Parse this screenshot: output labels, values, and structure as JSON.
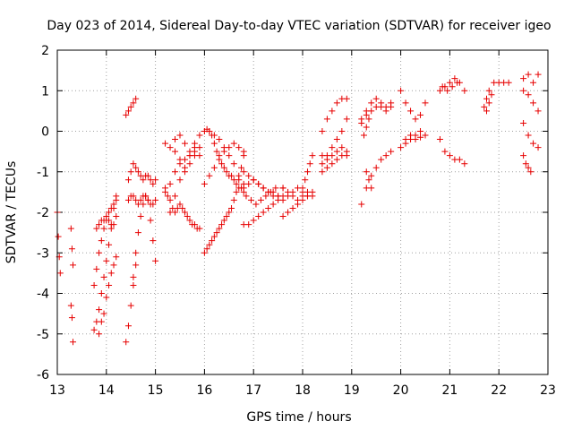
{
  "chart_data": {
    "type": "scatter",
    "title": "Day 023 of 2014, Sidereal Day-to-day VTEC variation (SDTVAR) for receiver igeo",
    "xlabel": "GPS time / hours",
    "ylabel": "SDTVAR / TECUs",
    "xlim": [
      13,
      23
    ],
    "ylim": [
      -6,
      2
    ],
    "xticks": [
      "13",
      "14",
      "15",
      "16",
      "17",
      "18",
      "19",
      "20",
      "21",
      "22",
      "23"
    ],
    "yticks": [
      "-6",
      "-5",
      "-4",
      "-3",
      "-2",
      "-1",
      "0",
      "1",
      "2"
    ],
    "grid": true,
    "marker": "+",
    "color": "#e60000",
    "segments": [
      {
        "x": [
          13.0,
          13.02,
          13.04,
          13.06
        ],
        "y": [
          -2.0,
          -2.6,
          -3.1,
          -3.5
        ]
      },
      {
        "x": [
          13.28,
          13.3,
          13.32
        ],
        "y": [
          -2.4,
          -2.9,
          -3.3
        ]
      },
      {
        "x": [
          13.28,
          13.3,
          13.32
        ],
        "y": [
          -4.3,
          -4.6,
          -5.2
        ]
      },
      {
        "x": [
          13.75,
          13.8,
          13.85,
          13.9,
          13.95,
          14.0,
          14.05,
          14.1,
          14.15,
          14.2
        ],
        "y": [
          -4.9,
          -4.7,
          -4.4,
          -4.0,
          -3.6,
          -3.2,
          -2.8,
          -2.3,
          -1.9,
          -1.6
        ]
      },
      {
        "x": [
          13.75,
          13.8,
          13.85,
          13.9,
          13.95,
          14.0,
          14.05,
          14.1,
          14.15,
          14.2
        ],
        "y": [
          -3.8,
          -3.4,
          -3.0,
          -2.7,
          -2.4,
          -2.2,
          -2.0,
          -1.9,
          -1.8,
          -1.7
        ]
      },
      {
        "x": [
          13.8,
          13.85,
          13.9,
          13.95,
          14.0,
          14.05,
          14.1,
          14.15,
          14.2
        ],
        "y": [
          -2.4,
          -2.3,
          -2.2,
          -2.2,
          -2.1,
          -2.2,
          -2.4,
          -2.3,
          -2.1
        ]
      },
      {
        "x": [
          13.85,
          13.9,
          13.95,
          14.0,
          14.05,
          14.1,
          14.15,
          14.2
        ],
        "y": [
          -5.0,
          -4.7,
          -4.5,
          -4.1,
          -3.8,
          -3.5,
          -3.3,
          -3.1
        ]
      },
      {
        "x": [
          14.4,
          14.45,
          14.5,
          14.55,
          14.6
        ],
        "y": [
          -5.2,
          -4.8,
          -4.3,
          -3.8,
          -3.3
        ]
      },
      {
        "x": [
          14.55,
          14.6,
          14.65,
          14.7,
          14.75,
          14.8,
          14.85,
          14.9,
          14.95,
          15.0
        ],
        "y": [
          -3.6,
          -3.0,
          -2.5,
          -2.1,
          -1.8,
          -1.6,
          -1.7,
          -2.2,
          -2.7,
          -3.2
        ]
      },
      {
        "x": [
          14.45,
          14.5,
          14.55,
          14.6,
          14.65,
          14.7,
          14.75,
          14.8,
          14.85,
          14.9,
          14.95,
          15.0
        ],
        "y": [
          -1.7,
          -1.6,
          -1.6,
          -1.7,
          -1.8,
          -1.7,
          -1.6,
          -1.6,
          -1.7,
          -1.8,
          -1.8,
          -1.7
        ]
      },
      {
        "x": [
          14.45,
          14.5,
          14.55,
          14.6,
          14.65,
          14.7,
          14.75,
          14.8,
          14.85,
          14.9,
          14.95,
          15.0
        ],
        "y": [
          -1.2,
          -1.0,
          -0.8,
          -0.9,
          -1.0,
          -1.1,
          -1.2,
          -1.1,
          -1.1,
          -1.2,
          -1.3,
          -1.2
        ]
      },
      {
        "x": [
          14.4,
          14.45,
          14.5,
          14.55,
          14.6
        ],
        "y": [
          0.4,
          0.5,
          0.6,
          0.7,
          0.8
        ]
      },
      {
        "x": [
          15.2,
          15.3,
          15.4,
          15.5,
          15.6,
          15.7,
          15.8,
          15.9
        ],
        "y": [
          -1.5,
          -1.3,
          -1.0,
          -0.8,
          -0.7,
          -0.6,
          -0.5,
          -0.4
        ]
      },
      {
        "x": [
          15.2,
          15.25,
          15.3,
          15.35,
          15.4,
          15.45,
          15.5,
          15.55,
          15.6,
          15.65,
          15.7,
          15.75,
          15.8,
          15.85,
          15.9
        ],
        "y": [
          -1.4,
          -1.6,
          -1.7,
          -1.9,
          -2.0,
          -1.9,
          -1.8,
          -1.9,
          -2.0,
          -2.1,
          -2.2,
          -2.3,
          -2.3,
          -2.4,
          -2.4
        ]
      },
      {
        "x": [
          15.2,
          15.3,
          15.4,
          15.5,
          15.6,
          15.7,
          15.8,
          15.9
        ],
        "y": [
          -0.3,
          -0.4,
          -0.2,
          -0.1,
          -0.3,
          -0.5,
          -0.4,
          -0.6
        ]
      },
      {
        "x": [
          15.3,
          15.4,
          15.5,
          15.6,
          15.7,
          15.8,
          15.9
        ],
        "y": [
          -2.0,
          -1.6,
          -1.2,
          -0.9,
          -0.6,
          -0.3,
          -0.1
        ]
      },
      {
        "x": [
          15.4,
          15.5,
          15.6,
          15.7,
          15.8
        ],
        "y": [
          -0.5,
          -0.7,
          -1.0,
          -0.8,
          -0.6
        ]
      },
      {
        "x": [
          16.0,
          16.05,
          16.1,
          16.15,
          16.2,
          16.25,
          16.3,
          16.35,
          16.4,
          16.45,
          16.5,
          16.55,
          16.6,
          16.65,
          16.7,
          16.75,
          16.8
        ],
        "y": [
          -3.0,
          -2.9,
          -2.8,
          -2.7,
          -2.6,
          -2.5,
          -2.4,
          -2.3,
          -2.2,
          -2.1,
          -2.0,
          -1.9,
          -1.7,
          -1.5,
          -1.2,
          -0.9,
          -0.5
        ]
      },
      {
        "x": [
          16.0,
          16.05,
          16.1,
          16.15,
          16.2,
          16.25,
          16.3,
          16.35,
          16.4,
          16.45,
          16.5,
          16.55,
          16.6,
          16.65,
          16.7,
          16.75,
          16.8
        ],
        "y": [
          0.0,
          0.05,
          0.0,
          -0.1,
          -0.3,
          -0.5,
          -0.6,
          -0.8,
          -0.9,
          -1.0,
          -1.1,
          -1.1,
          -1.2,
          -1.3,
          -1.4,
          -1.4,
          -1.5
        ]
      },
      {
        "x": [
          16.0,
          16.1,
          16.2,
          16.3,
          16.4,
          16.5,
          16.6,
          16.7,
          16.8
        ],
        "y": [
          -1.3,
          -1.1,
          -0.9,
          -0.7,
          -0.5,
          -0.4,
          -0.3,
          -0.4,
          -0.6
        ]
      },
      {
        "x": [
          16.1,
          16.2,
          16.3,
          16.4,
          16.5,
          16.6,
          16.7,
          16.8
        ],
        "y": [
          0.0,
          -0.1,
          -0.2,
          -0.4,
          -0.6,
          -0.8,
          -1.1,
          -1.3
        ]
      },
      {
        "x": [
          16.8,
          16.9,
          17.0,
          17.1,
          17.2,
          17.3,
          17.4,
          17.5,
          17.6
        ],
        "y": [
          -2.3,
          -2.3,
          -2.2,
          -2.1,
          -2.0,
          -1.9,
          -1.8,
          -1.6,
          -1.4
        ]
      },
      {
        "x": [
          16.8,
          16.9,
          17.0,
          17.1,
          17.2,
          17.3,
          17.4,
          17.5,
          17.6
        ],
        "y": [
          -1.0,
          -1.1,
          -1.2,
          -1.3,
          -1.4,
          -1.5,
          -1.5,
          -1.6,
          -1.6
        ]
      },
      {
        "x": [
          16.8,
          16.9,
          17.0,
          17.1,
          17.2,
          17.3,
          17.4,
          17.5
        ],
        "y": [
          -1.4,
          -1.3,
          -1.2,
          -1.3,
          -1.4,
          -1.5,
          -1.6,
          -1.7
        ]
      },
      {
        "x": [
          16.85,
          16.95,
          17.05,
          17.15,
          17.25,
          17.35,
          17.45
        ],
        "y": [
          -1.6,
          -1.7,
          -1.8,
          -1.7,
          -1.6,
          -1.5,
          -1.4
        ]
      },
      {
        "x": [
          17.6,
          17.7,
          17.8,
          17.9,
          18.0,
          18.1
        ],
        "y": [
          -2.1,
          -2.0,
          -1.9,
          -1.8,
          -1.7,
          -1.6
        ]
      },
      {
        "x": [
          17.6,
          17.7,
          17.8,
          17.9,
          18.0,
          18.1,
          18.2
        ],
        "y": [
          -1.4,
          -1.5,
          -1.6,
          -1.7,
          -1.6,
          -1.5,
          -1.6
        ]
      },
      {
        "x": [
          17.6,
          17.7,
          17.8,
          17.9,
          18.0,
          18.1,
          18.2
        ],
        "y": [
          -1.7,
          -1.6,
          -1.5,
          -1.4,
          -1.5,
          -1.6,
          -1.5
        ]
      },
      {
        "x": [
          18.0,
          18.05,
          18.1,
          18.15,
          18.2
        ],
        "y": [
          -1.4,
          -1.2,
          -1.0,
          -0.8,
          -0.6
        ]
      },
      {
        "x": [
          18.4,
          18.5,
          18.6,
          18.7,
          18.8,
          18.9
        ],
        "y": [
          0.0,
          0.3,
          0.5,
          0.7,
          0.8,
          0.8
        ]
      },
      {
        "x": [
          18.4,
          18.5,
          18.6,
          18.7,
          18.8,
          18.9
        ],
        "y": [
          -0.8,
          -0.6,
          -0.4,
          -0.2,
          0.0,
          0.3
        ]
      },
      {
        "x": [
          18.4,
          18.5,
          18.6,
          18.7,
          18.8,
          18.9
        ],
        "y": [
          -1.0,
          -0.9,
          -0.8,
          -0.7,
          -0.6,
          -0.6
        ]
      },
      {
        "x": [
          18.4,
          18.5,
          18.6,
          18.7,
          18.8,
          18.9
        ],
        "y": [
          -0.6,
          -0.7,
          -0.6,
          -0.5,
          -0.4,
          -0.5
        ]
      },
      {
        "x": [
          19.2,
          19.3,
          19.4,
          19.5,
          19.6,
          19.7,
          19.8
        ],
        "y": [
          -1.8,
          -1.4,
          -1.1,
          -0.9,
          -0.7,
          -0.6,
          -0.5
        ]
      },
      {
        "x": [
          19.2,
          19.3,
          19.4,
          19.5,
          19.6,
          19.7,
          19.8
        ],
        "y": [
          0.3,
          0.5,
          0.7,
          0.8,
          0.7,
          0.6,
          0.7
        ]
      },
      {
        "x": [
          19.2,
          19.3,
          19.4,
          19.5,
          19.6,
          19.7,
          19.8
        ],
        "y": [
          0.2,
          0.4,
          0.5,
          0.6,
          0.6,
          0.5,
          0.6
        ]
      },
      {
        "x": [
          19.25,
          19.3,
          19.35
        ],
        "y": [
          -0.1,
          0.1,
          0.3
        ]
      },
      {
        "x": [
          19.3,
          19.35,
          19.4
        ],
        "y": [
          -1.0,
          -1.2,
          -1.4
        ]
      },
      {
        "x": [
          20.0,
          20.1,
          20.2,
          20.3,
          20.4,
          20.5
        ],
        "y": [
          -0.4,
          -0.3,
          -0.2,
          -0.2,
          -0.15,
          -0.1
        ]
      },
      {
        "x": [
          20.0,
          20.1,
          20.2,
          20.3,
          20.4,
          20.5
        ],
        "y": [
          1.0,
          0.7,
          0.5,
          0.3,
          0.4,
          0.7
        ]
      },
      {
        "x": [
          20.1,
          20.2,
          20.3,
          20.4
        ],
        "y": [
          -0.2,
          -0.1,
          -0.1,
          0.0
        ]
      },
      {
        "x": [
          20.8,
          20.9,
          21.0,
          21.1,
          21.2,
          21.3
        ],
        "y": [
          -0.2,
          -0.5,
          -0.6,
          -0.7,
          -0.7,
          -0.8
        ]
      },
      {
        "x": [
          20.8,
          20.9,
          21.0,
          21.1,
          21.2,
          21.3
        ],
        "y": [
          1.0,
          1.1,
          1.2,
          1.3,
          1.2,
          1.0
        ]
      },
      {
        "x": [
          20.85,
          20.95,
          21.05,
          21.15
        ],
        "y": [
          1.1,
          1.0,
          1.1,
          1.2
        ]
      },
      {
        "x": [
          21.7,
          21.75,
          21.8,
          21.9,
          22.0,
          22.1,
          22.2
        ],
        "y": [
          0.6,
          0.8,
          1.0,
          1.2,
          1.2,
          1.2,
          1.2
        ]
      },
      {
        "x": [
          21.75,
          21.8,
          21.85
        ],
        "y": [
          0.5,
          0.7,
          0.9
        ]
      },
      {
        "x": [
          22.5,
          22.6,
          22.7,
          22.8
        ],
        "y": [
          1.3,
          1.4,
          1.2,
          1.4
        ]
      },
      {
        "x": [
          22.5,
          22.6,
          22.7,
          22.8
        ],
        "y": [
          1.0,
          0.9,
          0.7,
          0.5
        ]
      },
      {
        "x": [
          22.5,
          22.6,
          22.7,
          22.8
        ],
        "y": [
          0.2,
          -0.1,
          -0.3,
          -0.4
        ]
      },
      {
        "x": [
          22.5,
          22.55,
          22.6,
          22.65
        ],
        "y": [
          -0.6,
          -0.8,
          -0.9,
          -1.0
        ]
      }
    ]
  }
}
